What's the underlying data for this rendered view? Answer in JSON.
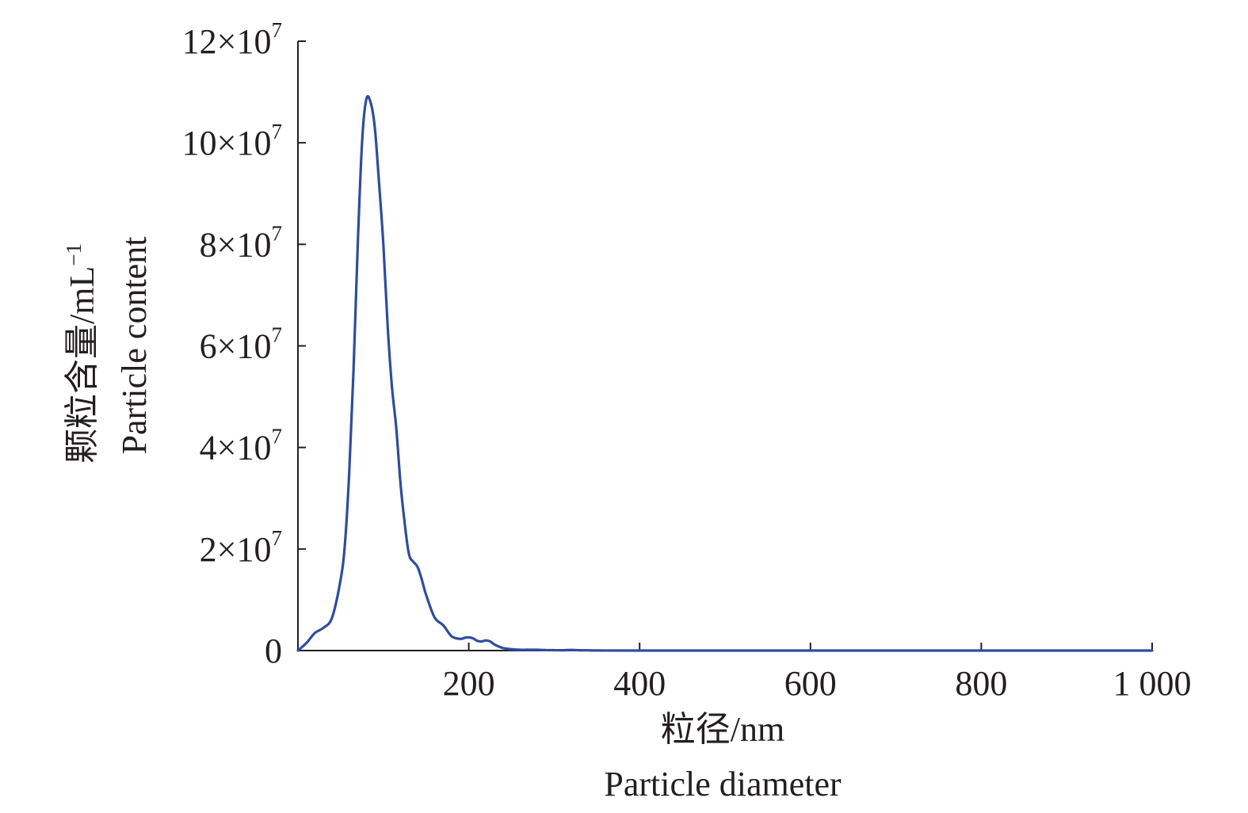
{
  "chart_data": {
    "type": "line",
    "title": "",
    "xlabel": "粒径/nm",
    "xlabel_en": "Particle diameter",
    "ylabel": "颗粒含量/mL",
    "ylabel_sup": "−1",
    "ylabel_en": "Particle content",
    "xlim": [
      0,
      1000
    ],
    "ylim": [
      0,
      120000000
    ],
    "grid": false,
    "x_ticks": [
      {
        "value": 200,
        "label": "200"
      },
      {
        "value": 400,
        "label": "400"
      },
      {
        "value": 600,
        "label": "600"
      },
      {
        "value": 800,
        "label": "800"
      },
      {
        "value": 1000,
        "label": "1 000"
      }
    ],
    "y_ticks": [
      {
        "value": 0,
        "base": "0",
        "exp": ""
      },
      {
        "value": 20000000,
        "base": "2×10",
        "exp": "7"
      },
      {
        "value": 40000000,
        "base": "4×10",
        "exp": "7"
      },
      {
        "value": 60000000,
        "base": "6×10",
        "exp": "7"
      },
      {
        "value": 80000000,
        "base": "8×10",
        "exp": "7"
      },
      {
        "value": 100000000,
        "base": "10×10",
        "exp": "7"
      },
      {
        "value": 120000000,
        "base": "12×10",
        "exp": "7"
      }
    ],
    "series": [
      {
        "color": "#2f4d9d",
        "x": [
          0,
          10,
          20,
          30,
          40,
          50,
          55,
          60,
          65,
          70,
          75,
          80,
          85,
          90,
          95,
          100,
          105,
          110,
          115,
          120,
          125,
          130,
          135,
          140,
          145,
          150,
          160,
          170,
          180,
          190,
          195,
          200,
          205,
          210,
          215,
          220,
          225,
          230,
          235,
          240,
          250,
          260,
          270,
          280,
          290,
          300,
          310,
          320,
          330,
          340,
          350,
          400,
          500,
          600,
          700,
          800,
          900,
          1000
        ],
        "y": [
          0,
          1500000,
          3500000,
          4500000,
          6500000,
          14000000,
          21000000,
          35000000,
          55000000,
          80000000,
          100000000,
          108500000,
          108000000,
          103000000,
          92000000,
          80000000,
          64000000,
          52000000,
          44000000,
          33000000,
          25000000,
          19000000,
          17500000,
          16500000,
          14000000,
          11000000,
          6500000,
          5000000,
          2800000,
          2300000,
          2500000,
          2600000,
          2400000,
          1900000,
          1800000,
          2000000,
          1800000,
          1200000,
          800000,
          500000,
          250000,
          150000,
          150000,
          150000,
          100000,
          80000,
          60000,
          120000,
          60000,
          40000,
          20000,
          0,
          0,
          0,
          0,
          0,
          0,
          0
        ]
      }
    ]
  }
}
